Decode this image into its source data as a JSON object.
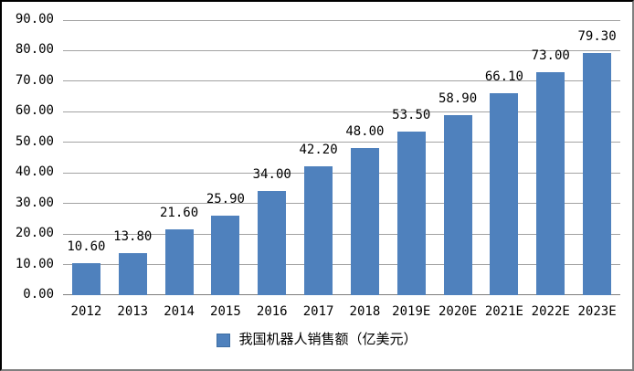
{
  "chart_data": {
    "type": "bar",
    "title": "",
    "xlabel": "",
    "ylabel": "",
    "categories": [
      "2012",
      "2013",
      "2014",
      "2015",
      "2016",
      "2017",
      "2018",
      "2019E",
      "2020E",
      "2021E",
      "2022E",
      "2023E"
    ],
    "values": [
      10.6,
      13.8,
      21.6,
      25.9,
      34.0,
      42.2,
      48.0,
      53.5,
      58.9,
      66.1,
      73.0,
      79.3
    ],
    "value_labels": [
      "10.60",
      "13.80",
      "21.60",
      "25.90",
      "34.00",
      "42.20",
      "48.00",
      "53.50",
      "58.90",
      "66.10",
      "73.00",
      "79.30"
    ],
    "ylim": [
      0,
      90
    ],
    "ytick_step": 10,
    "ytick_labels": [
      "0.00",
      "10.00",
      "20.00",
      "30.00",
      "40.00",
      "50.00",
      "60.00",
      "70.00",
      "80.00",
      "90.00"
    ],
    "grid": true,
    "legend": {
      "label": "我国机器人销售额（亿美元）",
      "position": "bottom",
      "marker": "square"
    },
    "colors": {
      "bar": "#4F81BD",
      "legend_swatch_border": "#3D6DA3",
      "gridline": "#A3A3A3",
      "axis": "#7F7F7F",
      "text": "#000000",
      "background": "#FFFFFF",
      "frame_dark": "#000000",
      "frame_light": "#808080"
    }
  }
}
